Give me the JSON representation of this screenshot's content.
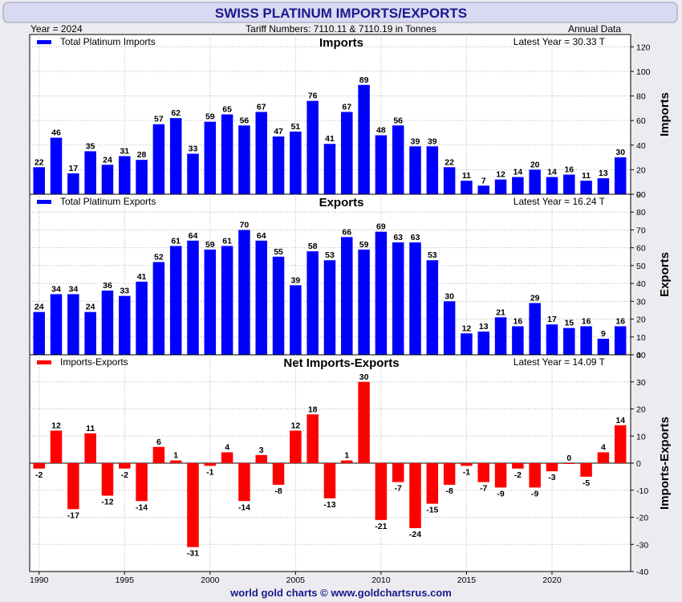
{
  "header": {
    "title": "SWISS PLATINUM IMPORTS/EXPORTS",
    "year_label": "Year = 2024",
    "tariff_label": "Tariff Numbers: 7110.11 & 7110.19 in Tonnes",
    "frequency_label": "Annual Data"
  },
  "footer": {
    "credit": "world gold charts © www.goldchartsrus.com"
  },
  "colors": {
    "positive": "#0000ff",
    "net": "#ff0000",
    "title": "#1a1a8c",
    "credit": "#1a1a8c"
  },
  "chart_data": [
    {
      "type": "bar",
      "title": "Imports",
      "ylabel": "Imports",
      "legend": "Total Platinum Imports",
      "latest": "Latest Year = 30.33 T",
      "ylim": [
        0,
        130
      ],
      "yticks": [
        0,
        20,
        40,
        60,
        80,
        100,
        120
      ],
      "x": [
        1990,
        1991,
        1992,
        1993,
        1994,
        1995,
        1996,
        1997,
        1998,
        1999,
        2000,
        2001,
        2002,
        2003,
        2004,
        2005,
        2006,
        2007,
        2008,
        2009,
        2010,
        2011,
        2012,
        2013,
        2014,
        2015,
        2016,
        2017,
        2018,
        2019,
        2020,
        2021,
        2022,
        2023,
        2024
      ],
      "values": [
        22,
        46,
        17,
        35,
        24,
        31,
        28,
        57,
        62,
        33,
        59,
        65,
        56,
        67,
        47,
        51,
        76,
        41,
        67,
        89,
        48,
        56,
        39,
        39,
        22,
        11,
        7,
        12,
        14,
        20,
        14,
        16,
        11,
        13,
        30
      ],
      "labels": [
        "22",
        "46",
        "17",
        "35",
        "24",
        "31",
        "28",
        "57",
        "62",
        "33",
        "59",
        "65",
        "56",
        "67",
        "47",
        "51",
        "76",
        "41",
        "67",
        "89",
        "48",
        "56",
        "39",
        "39",
        "22",
        "11",
        "7",
        "12",
        "14",
        "20",
        "14",
        "16",
        "11",
        "13",
        "30"
      ],
      "grid": true,
      "legend_position": "top-left"
    },
    {
      "type": "bar",
      "title": "Exports",
      "ylabel": "Exports",
      "legend": "Total Platinum Exports",
      "latest": "Latest Year = 16.24 T",
      "ylim": [
        0,
        90
      ],
      "yticks": [
        0,
        10,
        20,
        30,
        40,
        50,
        60,
        70,
        80,
        90
      ],
      "x": [
        1990,
        1991,
        1992,
        1993,
        1994,
        1995,
        1996,
        1997,
        1998,
        1999,
        2000,
        2001,
        2002,
        2003,
        2004,
        2005,
        2006,
        2007,
        2008,
        2009,
        2010,
        2011,
        2012,
        2013,
        2014,
        2015,
        2016,
        2017,
        2018,
        2019,
        2020,
        2021,
        2022,
        2023,
        2024
      ],
      "values": [
        24,
        34,
        34,
        24,
        36,
        33,
        41,
        52,
        61,
        64,
        59,
        61,
        70,
        64,
        55,
        39,
        58,
        53,
        66,
        59,
        69,
        63,
        63,
        53,
        30,
        12,
        13,
        21,
        16,
        29,
        17,
        15,
        16,
        9,
        16
      ],
      "labels": [
        "24",
        "34",
        "34",
        "24",
        "36",
        "33",
        "41",
        "52",
        "61",
        "64",
        "59",
        "61",
        "70",
        "64",
        "55",
        "39",
        "58",
        "53",
        "66",
        "59",
        "69",
        "63",
        "63",
        "53",
        "30",
        "12",
        "13",
        "21",
        "16",
        "29",
        "17",
        "15",
        "16",
        "9",
        "16"
      ],
      "grid": true,
      "legend_position": "top-left"
    },
    {
      "type": "bar",
      "title": "Net Imports-Exports",
      "ylabel": "Imports-Exports",
      "legend": "Imports-Exports",
      "latest": "Latest Year = 14.09 T",
      "ylim": [
        -40,
        40
      ],
      "yticks": [
        -40,
        -30,
        -20,
        -10,
        0,
        10,
        20,
        30,
        40
      ],
      "x": [
        1990,
        1991,
        1992,
        1993,
        1994,
        1995,
        1996,
        1997,
        1998,
        1999,
        2000,
        2001,
        2002,
        2003,
        2004,
        2005,
        2006,
        2007,
        2008,
        2009,
        2010,
        2011,
        2012,
        2013,
        2014,
        2015,
        2016,
        2017,
        2018,
        2019,
        2020,
        2021,
        2022,
        2023,
        2024
      ],
      "values": [
        -2,
        12,
        -17,
        11,
        -12,
        -2,
        -14,
        6,
        1,
        -31,
        -1,
        4,
        -14,
        3,
        -8,
        12,
        18,
        -13,
        1,
        30,
        -21,
        -7,
        -24,
        -15,
        -8,
        -1,
        -7,
        -9,
        -2,
        -9,
        -3,
        0,
        -5,
        4,
        14
      ],
      "labels": [
        "-2",
        "12",
        "-17",
        "11",
        "-12",
        "-2",
        "-14",
        "6",
        "1",
        "-31",
        "-1",
        "4",
        "-14",
        "3",
        "-8",
        "12",
        "18",
        "-13",
        "1",
        "30",
        "-21",
        "-7",
        "-24",
        "-15",
        "-8",
        "-1",
        "-7",
        "-9",
        "-2",
        "-9",
        "-3",
        "0",
        "-5",
        "4",
        "14"
      ],
      "grid": true,
      "legend_position": "top-left"
    }
  ],
  "x_axis": {
    "tick_years": [
      1990,
      1995,
      2000,
      2005,
      2010,
      2015,
      2020
    ],
    "tick_labels": [
      "1990",
      "1995",
      "2000",
      "2005",
      "2010",
      "2015",
      "2020"
    ]
  }
}
